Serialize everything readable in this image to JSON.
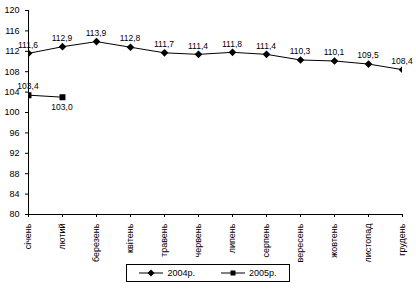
{
  "chart_data": {
    "type": "line",
    "categories": [
      "січень",
      "лютий",
      "березень",
      "квітень",
      "травень",
      "червень",
      "липень",
      "серпень",
      "вересень",
      "жовтень",
      "листопад",
      "грудень"
    ],
    "series": [
      {
        "name": "2004р.",
        "color": "#000000",
        "marker": "diamond",
        "values": [
          111.6,
          112.9,
          113.9,
          112.8,
          111.7,
          111.4,
          111.8,
          111.4,
          110.3,
          110.1,
          109.5,
          108.4
        ],
        "value_labels": [
          "111,6",
          "112,9",
          "113,9",
          "112,8",
          "111,7",
          "111,4",
          "111,8",
          "111,4",
          "110,3",
          "110,1",
          "109,5",
          "108,4"
        ]
      },
      {
        "name": "2005р.",
        "color": "#000000",
        "marker": "square",
        "values": [
          103.4,
          103.0,
          null,
          null,
          null,
          null,
          null,
          null,
          null,
          null,
          null,
          null
        ],
        "value_labels": [
          "103,4",
          "103,0",
          null,
          null,
          null,
          null,
          null,
          null,
          null,
          null,
          null,
          null
        ]
      }
    ],
    "ylim": [
      80,
      120
    ],
    "yticks": [
      80,
      84,
      88,
      92,
      96,
      100,
      104,
      108,
      112,
      116,
      120
    ],
    "grid": false,
    "legend": "bottom",
    "data_labels": true
  }
}
